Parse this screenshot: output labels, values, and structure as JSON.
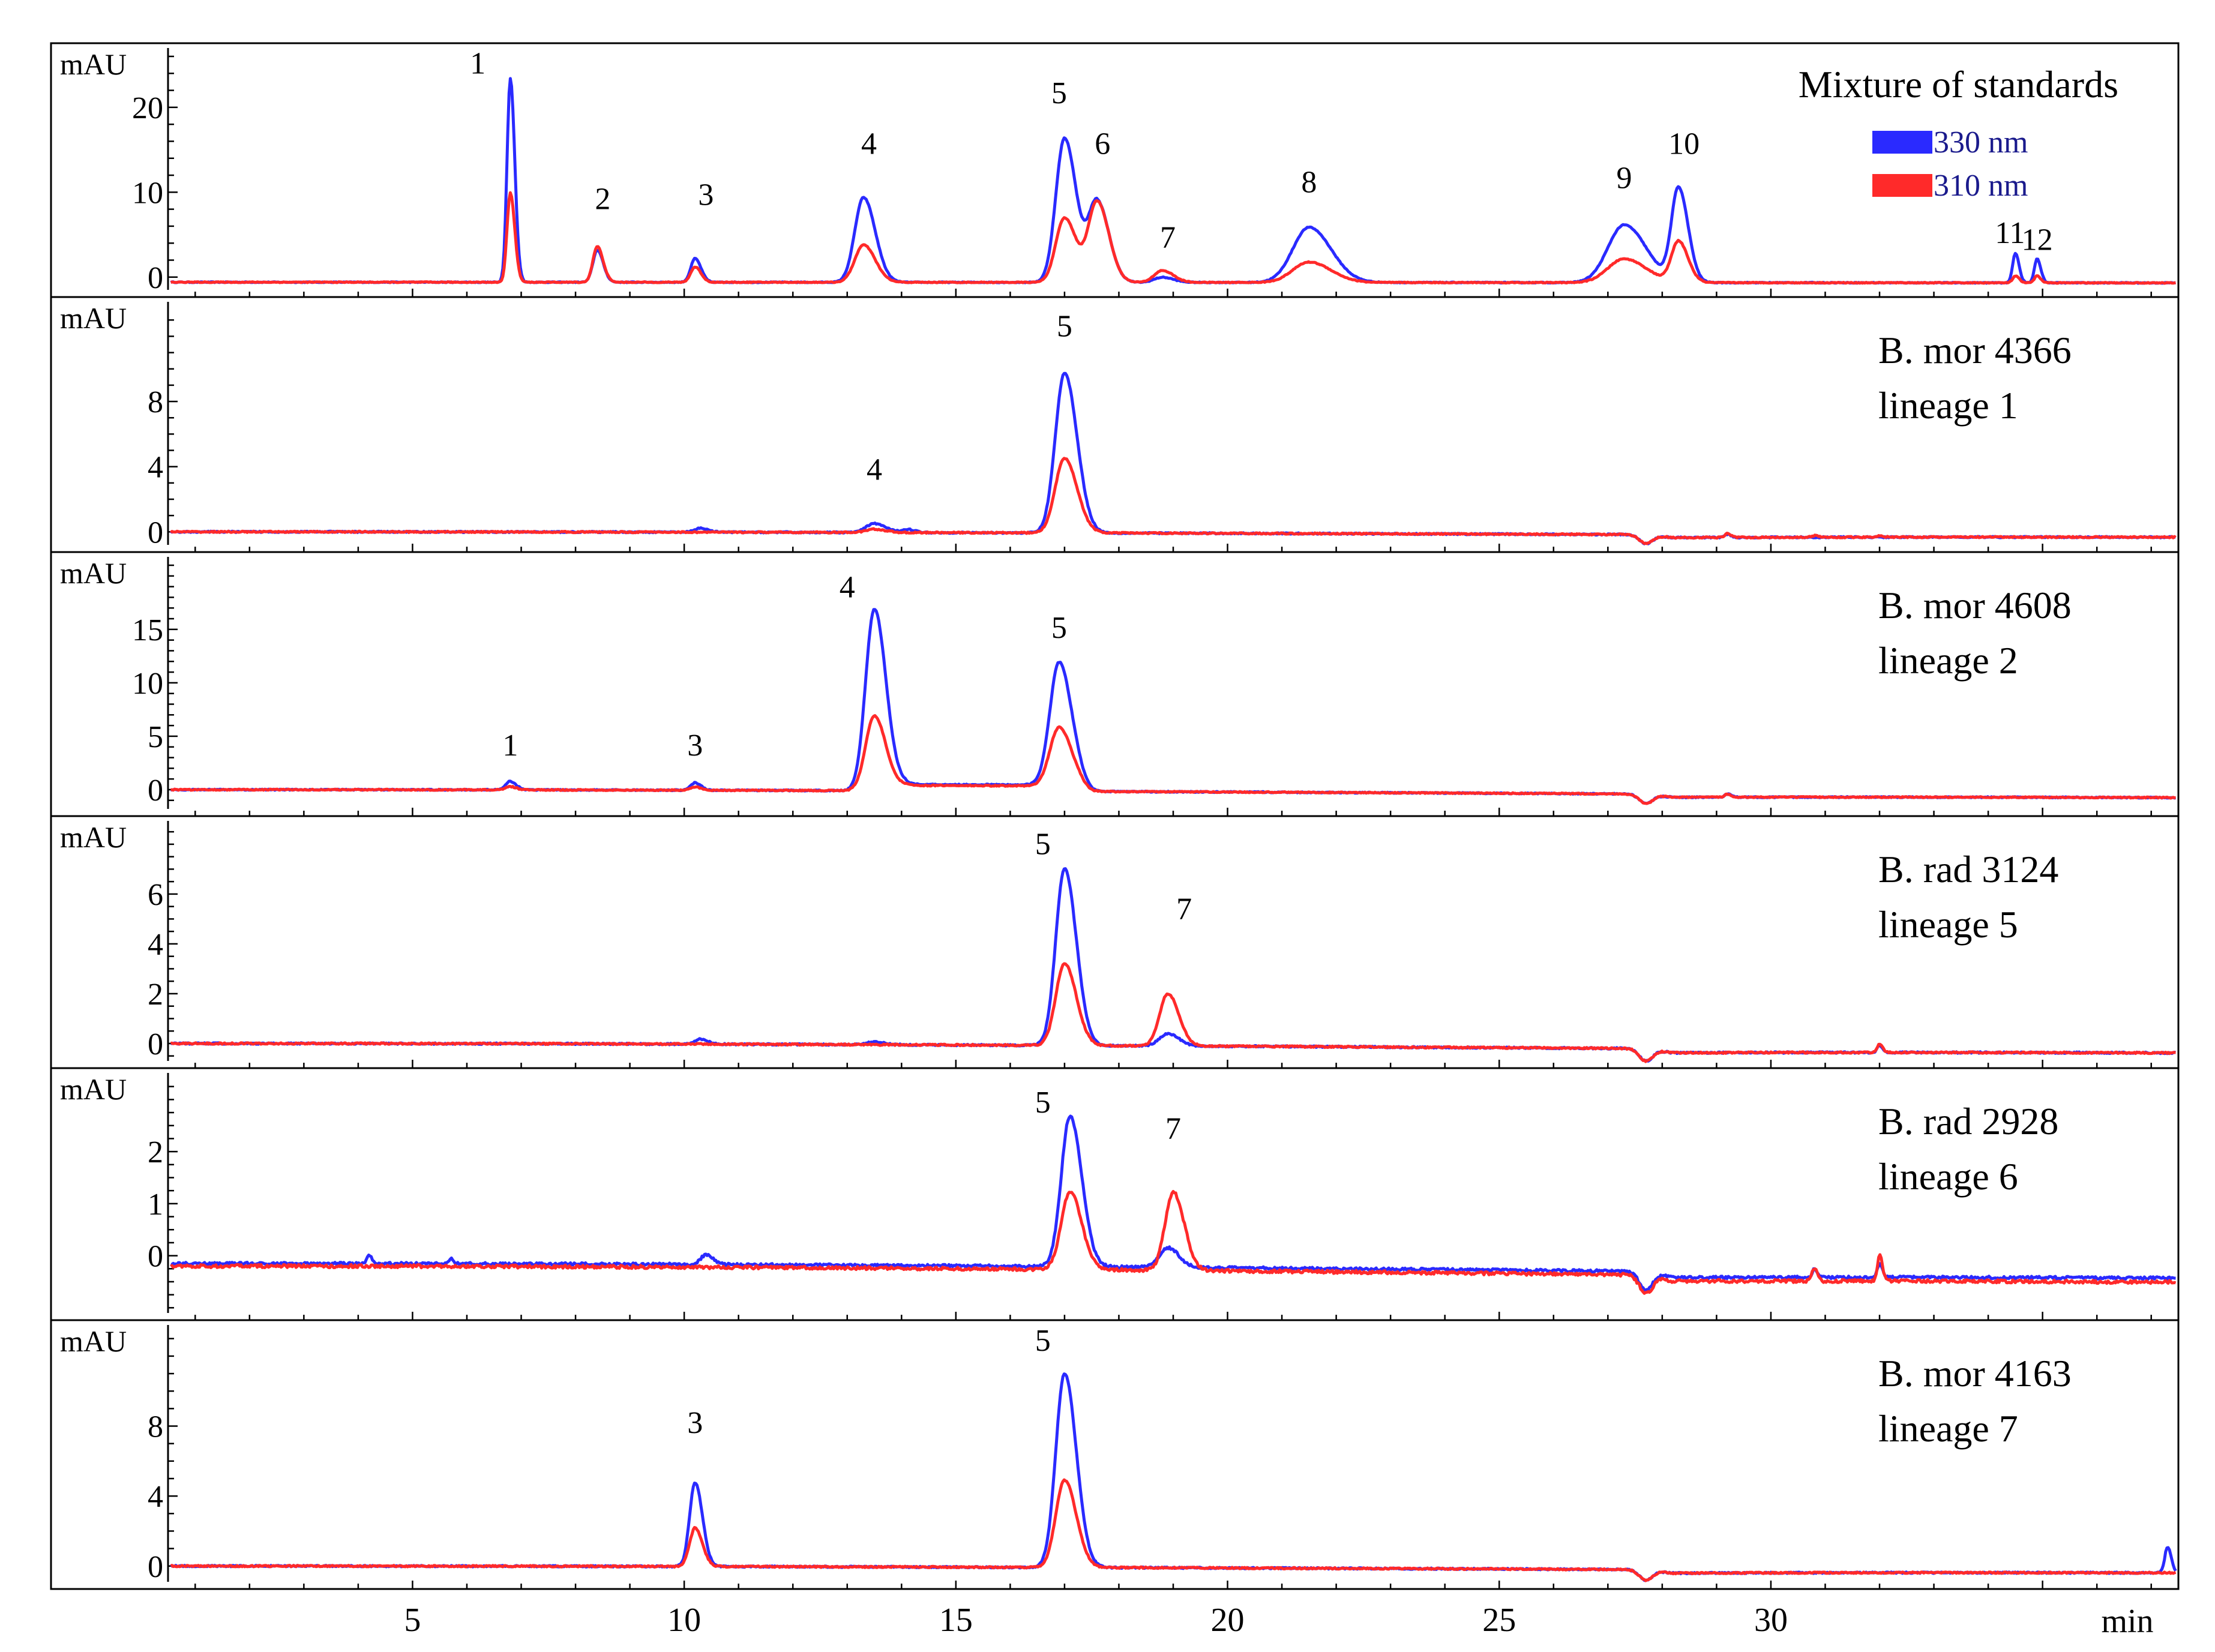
{
  "chart_data": {
    "type": "line",
    "title": "Mixture of standards",
    "xlabel": "min",
    "x_range": [
      0.5,
      37.5
    ],
    "x_ticks": [
      5,
      10,
      15,
      20,
      25,
      30
    ],
    "ylabel": "mAU",
    "colors": {
      "330 nm": "#2a2aff",
      "310 nm": "#ff2a2a",
      "axis": "#000000"
    },
    "legend": [
      {
        "name": "330 nm",
        "color": "#2a2aff"
      },
      {
        "name": "310 nm",
        "color": "#ff2a2a"
      }
    ],
    "legend_position": "top-right",
    "panels": [
      {
        "id": "mix",
        "label_lines": [
          "Mixture of standards"
        ],
        "ylim": [
          -1.5,
          26
        ],
        "yticks": [
          0,
          10,
          20
        ],
        "minor_step": 2,
        "series": [
          {
            "name": "330 nm",
            "baseline": -0.6,
            "drift": 0.15,
            "noise": 0.05,
            "peaks": [
              [
                6.8,
                24,
                0.06
              ],
              [
                8.4,
                3.8,
                0.08
              ],
              [
                10.2,
                2.8,
                0.08
              ],
              [
                13.3,
                10,
                0.16
              ],
              [
                17.0,
                17,
                0.16
              ],
              [
                17.6,
                9.5,
                0.16
              ],
              [
                18.8,
                0.6,
                0.15
              ],
              [
                21.5,
                6.5,
                0.3
              ],
              [
                27.3,
                6.8,
                0.3
              ],
              [
                28.3,
                11,
                0.13
              ],
              [
                34.5,
                3.5,
                0.05
              ],
              [
                34.9,
                2.8,
                0.05
              ]
            ]
          },
          {
            "name": "310 nm",
            "baseline": -0.6,
            "drift": 0.15,
            "noise": 0.05,
            "peaks": [
              [
                6.8,
                10.5,
                0.06
              ],
              [
                8.4,
                4.2,
                0.08
              ],
              [
                10.2,
                1.8,
                0.08
              ],
              [
                13.3,
                4.4,
                0.16
              ],
              [
                17.0,
                7.6,
                0.16
              ],
              [
                17.6,
                9.5,
                0.16
              ],
              [
                18.8,
                1.4,
                0.15
              ],
              [
                21.5,
                2.4,
                0.3
              ],
              [
                27.3,
                2.8,
                0.3
              ],
              [
                28.3,
                4.8,
                0.13
              ],
              [
                34.5,
                0.8,
                0.05
              ],
              [
                34.9,
                0.8,
                0.05
              ]
            ]
          }
        ],
        "peak_labels": [
          {
            "text": "1",
            "x": 6.2,
            "y": 24
          },
          {
            "text": "2",
            "x": 8.5,
            "y": 8
          },
          {
            "text": "3",
            "x": 10.4,
            "y": 8.5
          },
          {
            "text": "4",
            "x": 13.4,
            "y": 14.5
          },
          {
            "text": "5",
            "x": 16.9,
            "y": 20.5
          },
          {
            "text": "6",
            "x": 17.7,
            "y": 14.5
          },
          {
            "text": "7",
            "x": 18.9,
            "y": 3.5
          },
          {
            "text": "8",
            "x": 21.5,
            "y": 10
          },
          {
            "text": "9",
            "x": 27.3,
            "y": 10.5
          },
          {
            "text": "10",
            "x": 28.4,
            "y": 14.5
          },
          {
            "text": "11",
            "x": 34.4,
            "y": 4
          },
          {
            "text": "12",
            "x": 34.9,
            "y": 3.2
          }
        ]
      },
      {
        "id": "mor4366",
        "label_lines": [
          "B. mor 4366",
          "lineage  1"
        ],
        "ylim": [
          -0.8,
          13.6
        ],
        "yticks": [
          0,
          4,
          8
        ],
        "minor_step": 1,
        "series": [
          {
            "name": "330 nm",
            "baseline": 0,
            "drift": 0.5,
            "noise": 0.04,
            "peaks": [
              [
                10.3,
                0.25,
                0.1
              ],
              [
                13.5,
                0.55,
                0.15
              ],
              [
                14.1,
                0.2,
                0.1
              ],
              [
                17.0,
                9.8,
                0.17
              ],
              [
                29.2,
                0.2,
                0.05
              ]
            ],
            "dip": [
              27.7,
              -0.55
            ]
          },
          {
            "name": "310 nm",
            "baseline": 0,
            "drift": 0.5,
            "noise": 0.04,
            "peaks": [
              [
                13.5,
                0.2,
                0.15
              ],
              [
                17.0,
                4.6,
                0.17
              ],
              [
                29.2,
                0.25,
                0.05
              ],
              [
                30.8,
                0.1,
                0.05
              ],
              [
                32.0,
                0.1,
                0.05
              ]
            ],
            "dip": [
              27.7,
              -0.55
            ]
          }
        ],
        "peak_labels": [
          {
            "text": "4",
            "x": 13.5,
            "y": 3.2
          },
          {
            "text": "5",
            "x": 17.0,
            "y": 12
          }
        ]
      },
      {
        "id": "mor4608",
        "label_lines": [
          "B. mor 4608",
          "lineage  2"
        ],
        "ylim": [
          -1.8,
          21
        ],
        "yticks": [
          0,
          5,
          10,
          15
        ],
        "minor_step": 1,
        "series": [
          {
            "name": "330 nm",
            "baseline": 0,
            "drift": 1.2,
            "noise": 0.05,
            "peaks": [
              [
                6.8,
                0.8,
                0.08
              ],
              [
                10.2,
                0.7,
                0.08
              ],
              [
                13.5,
                17,
                0.16
              ],
              [
                16.9,
                11.5,
                0.17
              ],
              [
                29.2,
                0.3,
                0.05
              ]
            ],
            "dip": [
              27.7,
              -0.9
            ],
            "plateau": [
              13.8,
              17.5,
              0.6
            ]
          },
          {
            "name": "310 nm",
            "baseline": 0,
            "drift": 1.2,
            "noise": 0.05,
            "peaks": [
              [
                6.8,
                0.3,
                0.08
              ],
              [
                10.2,
                0.3,
                0.08
              ],
              [
                13.5,
                7,
                0.16
              ],
              [
                16.9,
                5.5,
                0.17
              ],
              [
                29.2,
                0.3,
                0.05
              ]
            ],
            "dip": [
              27.7,
              -0.9
            ],
            "plateau": [
              13.8,
              17.5,
              0.5
            ]
          }
        ],
        "peak_labels": [
          {
            "text": "1",
            "x": 6.8,
            "y": 3.2
          },
          {
            "text": "3",
            "x": 10.2,
            "y": 3.2
          },
          {
            "text": "4",
            "x": 13.0,
            "y": 18
          },
          {
            "text": "5",
            "x": 16.9,
            "y": 14.2
          }
        ]
      },
      {
        "id": "rad3124",
        "label_lines": [
          "B. rad 3124",
          "lineage  5"
        ],
        "ylim": [
          -0.7,
          8.6
        ],
        "yticks": [
          0,
          2,
          4,
          6
        ],
        "minor_step": 0.5,
        "series": [
          {
            "name": "330 nm",
            "baseline": 0,
            "drift": 0.6,
            "noise": 0.03,
            "peaks": [
              [
                10.3,
                0.2,
                0.1
              ],
              [
                13.5,
                0.1,
                0.15
              ],
              [
                17.0,
                7.1,
                0.16
              ],
              [
                18.9,
                0.5,
                0.15
              ],
              [
                32.0,
                0.3,
                0.04
              ]
            ],
            "dip": [
              27.7,
              -0.5
            ]
          },
          {
            "name": "310 nm",
            "baseline": 0,
            "drift": 0.6,
            "noise": 0.03,
            "peaks": [
              [
                17.0,
                3.3,
                0.16
              ],
              [
                18.9,
                2.1,
                0.15
              ],
              [
                32.0,
                0.35,
                0.04
              ]
            ],
            "dip": [
              27.7,
              -0.5
            ]
          }
        ],
        "peak_labels": [
          {
            "text": "5",
            "x": 16.6,
            "y": 7.6
          },
          {
            "text": "7",
            "x": 19.2,
            "y": 5
          }
        ]
      },
      {
        "id": "rad2928",
        "label_lines": [
          "B. rad 2928",
          "lineage  6"
        ],
        "ylim": [
          -1.1,
          3.35
        ],
        "yticks": [
          0,
          1,
          2
        ],
        "minor_step": 0.25,
        "series": [
          {
            "name": "330 nm",
            "baseline": -0.15,
            "drift": 0.45,
            "noise": 0.025,
            "peaks": [
              [
                4.2,
                0.15,
                0.04
              ],
              [
                5.7,
                0.1,
                0.04
              ],
              [
                10.4,
                0.18,
                0.1
              ],
              [
                17.1,
                2.9,
                0.16
              ],
              [
                18.9,
                0.38,
                0.15
              ],
              [
                30.8,
                0.15,
                0.04
              ],
              [
                32.0,
                0.25,
                0.04
              ]
            ],
            "dip": [
              27.7,
              -0.35
            ]
          },
          {
            "name": "310 nm",
            "baseline": -0.2,
            "drift": 0.5,
            "noise": 0.03,
            "peaks": [
              [
                17.1,
                1.5,
                0.16
              ],
              [
                19.0,
                1.5,
                0.15
              ],
              [
                30.8,
                0.25,
                0.04
              ],
              [
                32.0,
                0.5,
                0.04
              ]
            ],
            "dip": [
              27.7,
              -0.35
            ]
          }
        ],
        "peak_labels": [
          {
            "text": "5",
            "x": 16.6,
            "y": 2.75
          },
          {
            "text": "7",
            "x": 19.0,
            "y": 2.25
          }
        ]
      },
      {
        "id": "mor4163",
        "label_lines": [
          "B. mor 4163",
          "lineage  7"
        ],
        "ylim": [
          -0.9,
          13.3
        ],
        "yticks": [
          0,
          4,
          8
        ],
        "minor_step": 1,
        "series": [
          {
            "name": "330 nm",
            "baseline": 0,
            "drift": 0.6,
            "noise": 0.04,
            "peaks": [
              [
                10.2,
                4.8,
                0.1
              ],
              [
                17.0,
                11.1,
                0.16
              ],
              [
                37.3,
                1.5,
                0.05
              ]
            ],
            "dip": [
              27.7,
              -0.6
            ]
          },
          {
            "name": "310 nm",
            "baseline": 0,
            "drift": 0.6,
            "noise": 0.04,
            "peaks": [
              [
                10.2,
                2.2,
                0.1
              ],
              [
                17.0,
                5.0,
                0.16
              ]
            ],
            "dip": [
              27.7,
              -0.6
            ]
          }
        ],
        "peak_labels": [
          {
            "text": "3",
            "x": 10.2,
            "y": 7.6
          },
          {
            "text": "5",
            "x": 16.6,
            "y": 12.3
          }
        ]
      }
    ]
  }
}
